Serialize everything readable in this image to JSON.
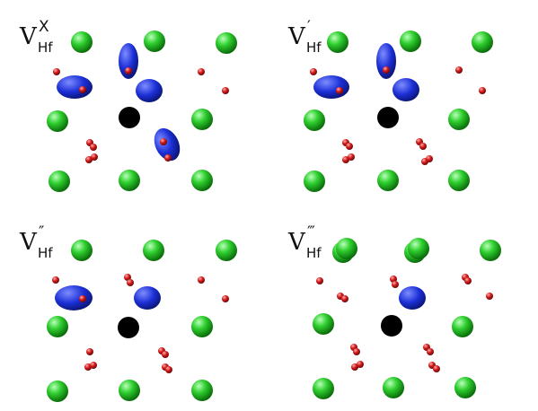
{
  "panels": [
    {
      "id": "vx",
      "label": {
        "base": "V",
        "sub": "Hf",
        "sup": "X"
      }
    },
    {
      "id": "v1",
      "label": {
        "base": "V",
        "sub": "Hf",
        "sup": "′"
      }
    },
    {
      "id": "v2",
      "label": {
        "base": "V",
        "sub": "Hf",
        "sup": "″"
      }
    },
    {
      "id": "v3",
      "label": {
        "base": "V",
        "sub": "Hf",
        "sup": "‴"
      }
    }
  ],
  "colors": {
    "hf_atom": "#2fcf2f",
    "oxygen_atom": "#d41b1b",
    "vacancy": "#000000",
    "charge_density": "#1b2fd6"
  }
}
